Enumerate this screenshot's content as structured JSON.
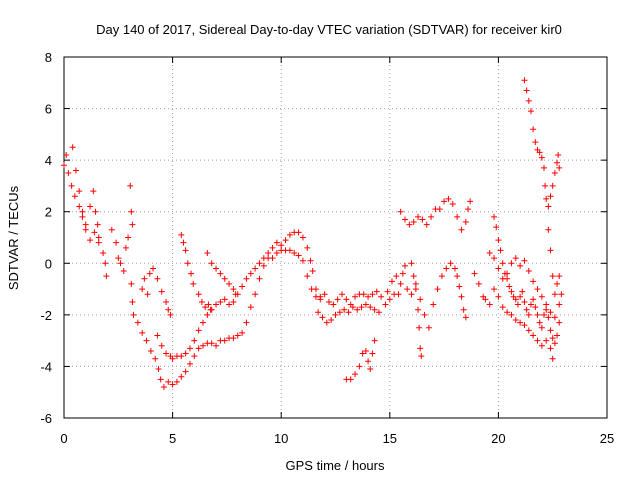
{
  "chart_data": {
    "type": "scatter",
    "title": "Day 140 of 2017, Sidereal Day-to-day VTEC variation (SDTVAR) for receiver kir0",
    "xlabel": "GPS time / hours",
    "ylabel": "SDTVAR / TECUs",
    "xlim": [
      0,
      25
    ],
    "ylim": [
      -6,
      8
    ],
    "xticks": [
      "0",
      "5",
      "10",
      "15",
      "20",
      "25"
    ],
    "yticks": [
      "-6",
      "-4",
      "-2",
      "0",
      "2",
      "4",
      "6",
      "8"
    ],
    "grid": true,
    "marker": "+",
    "series_color": "#ff0000",
    "tracks": [
      [
        [
          0.0,
          3.8
        ],
        [
          0.1,
          4.2
        ],
        [
          0.2,
          3.5
        ],
        [
          0.35,
          3.0
        ],
        [
          0.5,
          2.6
        ],
        [
          0.7,
          2.2
        ],
        [
          0.85,
          1.8
        ],
        [
          1.0,
          1.3
        ],
        [
          1.2,
          0.9
        ],
        [
          1.4,
          1.2
        ],
        [
          1.6,
          0.8
        ],
        [
          1.8,
          0.4
        ],
        [
          1.9,
          0.0
        ],
        [
          1.95,
          -0.5
        ]
      ],
      [
        [
          0.4,
          4.5
        ],
        [
          0.55,
          3.6
        ],
        [
          0.7,
          2.8
        ],
        [
          0.85,
          2.0
        ],
        [
          1.0,
          1.5
        ],
        [
          1.2,
          2.2
        ],
        [
          1.35,
          2.8
        ],
        [
          1.45,
          2.0
        ],
        [
          1.55,
          1.5
        ],
        [
          1.6,
          1.0
        ]
      ],
      [
        [
          2.2,
          1.3
        ],
        [
          2.4,
          0.8
        ],
        [
          2.5,
          0.2
        ],
        [
          2.6,
          0.0
        ],
        [
          2.75,
          -0.3
        ],
        [
          2.85,
          0.6
        ],
        [
          2.95,
          1.0
        ]
      ],
      [
        [
          3.05,
          3.0
        ],
        [
          3.1,
          2.0
        ],
        [
          3.15,
          1.5
        ]
      ],
      [
        [
          3.1,
          -0.8
        ],
        [
          3.15,
          -1.5
        ],
        [
          3.2,
          -2.0
        ],
        [
          3.4,
          -2.3
        ],
        [
          3.6,
          -2.7
        ],
        [
          3.8,
          -3.0
        ],
        [
          4.0,
          -3.4
        ],
        [
          4.2,
          -3.7
        ],
        [
          4.35,
          -4.1
        ],
        [
          4.45,
          -4.5
        ],
        [
          4.6,
          -4.8
        ],
        [
          4.8,
          -4.6
        ],
        [
          5.0,
          -4.7
        ],
        [
          5.2,
          -4.6
        ],
        [
          5.4,
          -4.4
        ],
        [
          5.6,
          -4.2
        ],
        [
          5.8,
          -3.9
        ],
        [
          6.0,
          -3.6
        ],
        [
          6.2,
          -3.3
        ],
        [
          6.4,
          -3.2
        ],
        [
          6.6,
          -3.1
        ],
        [
          6.8,
          -3.1
        ],
        [
          7.0,
          -3.2
        ],
        [
          7.2,
          -3.0
        ],
        [
          7.4,
          -3.0
        ],
        [
          7.6,
          -2.9
        ],
        [
          7.8,
          -2.9
        ],
        [
          8.0,
          -2.8
        ],
        [
          8.2,
          -2.7
        ],
        [
          8.4,
          -2.3
        ],
        [
          8.6,
          -1.7
        ],
        [
          8.8,
          -1.2
        ],
        [
          9.0,
          -0.6
        ],
        [
          9.2,
          -0.1
        ],
        [
          9.4,
          0.2
        ],
        [
          9.6,
          0.2
        ],
        [
          9.8,
          0.4
        ],
        [
          10.0,
          0.5
        ],
        [
          10.2,
          0.5
        ],
        [
          10.4,
          0.5
        ],
        [
          10.6,
          0.4
        ],
        [
          10.8,
          0.3
        ],
        [
          11.0,
          0.1
        ],
        [
          11.2,
          -0.5
        ],
        [
          11.4,
          -1.0
        ],
        [
          11.6,
          -1.3
        ],
        [
          11.8,
          -1.4
        ]
      ],
      [
        [
          3.6,
          -1.0
        ],
        [
          3.7,
          -0.6
        ],
        [
          3.85,
          -1.2
        ],
        [
          3.95,
          -0.4
        ],
        [
          4.1,
          -0.2
        ],
        [
          4.3,
          -0.6
        ],
        [
          4.5,
          -1.1
        ],
        [
          4.7,
          -1.5
        ],
        [
          4.8,
          -1.8
        ],
        [
          4.9,
          -2.0
        ]
      ],
      [
        [
          4.3,
          -2.8
        ],
        [
          4.5,
          -3.2
        ],
        [
          4.7,
          -3.5
        ],
        [
          4.9,
          -3.6
        ],
        [
          5.0,
          -3.7
        ],
        [
          5.2,
          -3.6
        ],
        [
          5.4,
          -3.6
        ],
        [
          5.6,
          -3.5
        ],
        [
          5.8,
          -3.3
        ],
        [
          6.0,
          -3.0
        ],
        [
          6.2,
          -2.6
        ],
        [
          6.4,
          -2.3
        ],
        [
          6.6,
          -2.0
        ],
        [
          6.8,
          -1.8
        ],
        [
          7.0,
          -1.6
        ],
        [
          7.2,
          -1.5
        ],
        [
          7.4,
          -1.4
        ],
        [
          7.6,
          -1.6
        ],
        [
          7.8,
          -1.5
        ],
        [
          8.0,
          -1.2
        ],
        [
          8.2,
          -0.9
        ],
        [
          8.4,
          -0.6
        ],
        [
          8.6,
          -0.4
        ],
        [
          8.8,
          -0.2
        ],
        [
          9.0,
          0.0
        ],
        [
          9.2,
          0.2
        ],
        [
          9.4,
          0.4
        ],
        [
          9.6,
          0.6
        ],
        [
          9.8,
          0.8
        ],
        [
          10.0,
          0.7
        ],
        [
          10.2,
          0.9
        ],
        [
          10.4,
          1.1
        ],
        [
          10.6,
          1.2
        ],
        [
          10.8,
          1.2
        ],
        [
          11.0,
          1.0
        ],
        [
          11.2,
          0.6
        ],
        [
          11.35,
          0.1
        ],
        [
          11.45,
          -0.3
        ]
      ],
      [
        [
          5.4,
          1.1
        ],
        [
          5.5,
          0.8
        ],
        [
          5.6,
          0.5
        ],
        [
          5.7,
          0.0
        ],
        [
          5.85,
          -0.4
        ],
        [
          5.95,
          -0.8
        ]
      ],
      [
        [
          6.2,
          -1.2
        ],
        [
          6.35,
          -1.5
        ],
        [
          6.5,
          -1.7
        ],
        [
          6.65,
          -1.6
        ],
        [
          6.75,
          -1.8
        ]
      ],
      [
        [
          6.6,
          0.4
        ],
        [
          6.8,
          0.0
        ],
        [
          7.0,
          -0.2
        ],
        [
          7.2,
          -0.4
        ],
        [
          7.4,
          -0.6
        ],
        [
          7.6,
          -0.8
        ],
        [
          7.8,
          -1.0
        ],
        [
          7.9,
          -1.2
        ]
      ],
      [
        [
          11.6,
          -1.0
        ],
        [
          11.8,
          -1.3
        ],
        [
          12.0,
          -1.2
        ],
        [
          12.2,
          -1.5
        ],
        [
          12.4,
          -1.6
        ],
        [
          12.6,
          -1.4
        ],
        [
          12.8,
          -1.2
        ],
        [
          13.0,
          -1.4
        ],
        [
          13.2,
          -1.6
        ],
        [
          13.4,
          -1.3
        ],
        [
          13.6,
          -1.2
        ],
        [
          13.8,
          -1.2
        ],
        [
          14.0,
          -1.3
        ],
        [
          14.2,
          -1.2
        ],
        [
          14.4,
          -1.1
        ],
        [
          14.6,
          -1.3
        ],
        [
          14.8,
          -1.6
        ],
        [
          15.0,
          -1.4
        ],
        [
          15.2,
          -1.2
        ],
        [
          15.4,
          -1.2
        ]
      ],
      [
        [
          11.7,
          -1.9
        ],
        [
          11.9,
          -2.1
        ],
        [
          12.1,
          -2.3
        ],
        [
          12.3,
          -2.2
        ],
        [
          12.5,
          -2.0
        ],
        [
          12.7,
          -1.9
        ],
        [
          12.9,
          -1.8
        ],
        [
          13.1,
          -1.9
        ],
        [
          13.3,
          -1.7
        ],
        [
          13.5,
          -1.8
        ],
        [
          13.7,
          -1.7
        ],
        [
          13.9,
          -1.6
        ],
        [
          14.1,
          -1.7
        ],
        [
          14.3,
          -1.8
        ],
        [
          14.5,
          -1.9
        ]
      ],
      [
        [
          13.0,
          -4.5
        ],
        [
          13.2,
          -4.5
        ],
        [
          13.4,
          -4.3
        ],
        [
          13.6,
          -4.0
        ],
        [
          13.75,
          -3.5
        ],
        [
          13.9,
          -3.4
        ],
        [
          14.0,
          -3.8
        ],
        [
          14.1,
          -4.1
        ],
        [
          14.2,
          -3.5
        ],
        [
          14.3,
          -3.0
        ]
      ],
      [
        [
          14.9,
          -1.1
        ],
        [
          15.1,
          -0.7
        ],
        [
          15.3,
          -0.5
        ],
        [
          15.5,
          -0.8
        ],
        [
          15.6,
          -0.4
        ],
        [
          15.7,
          -0.1
        ]
      ],
      [
        [
          15.5,
          2.0
        ],
        [
          15.7,
          1.7
        ],
        [
          15.9,
          1.5
        ],
        [
          16.1,
          1.6
        ],
        [
          16.3,
          1.8
        ],
        [
          16.5,
          1.7
        ],
        [
          16.7,
          1.5
        ],
        [
          16.9,
          1.8
        ],
        [
          17.1,
          2.1
        ],
        [
          17.3,
          2.1
        ],
        [
          17.5,
          2.4
        ],
        [
          17.7,
          2.5
        ],
        [
          17.9,
          2.3
        ],
        [
          18.1,
          1.8
        ],
        [
          18.3,
          1.3
        ],
        [
          18.5,
          1.6
        ],
        [
          18.6,
          2.1
        ],
        [
          18.7,
          2.4
        ]
      ],
      [
        [
          15.8,
          -1.0
        ],
        [
          16.0,
          -1.2
        ],
        [
          16.2,
          -0.8
        ],
        [
          16.4,
          -1.4
        ],
        [
          16.6,
          -2.0
        ],
        [
          16.8,
          -2.5
        ],
        [
          17.0,
          -1.6
        ],
        [
          17.2,
          -1.0
        ],
        [
          17.4,
          -0.5
        ],
        [
          17.6,
          -0.2
        ],
        [
          17.8,
          0.0
        ],
        [
          18.0,
          -0.2
        ],
        [
          18.1,
          -0.5
        ],
        [
          18.2,
          -0.9
        ],
        [
          18.3,
          -1.3
        ],
        [
          18.4,
          -1.8
        ],
        [
          18.5,
          -2.1
        ]
      ],
      [
        [
          16.0,
          0.0
        ],
        [
          16.1,
          -0.5
        ],
        [
          16.2,
          -1.0
        ],
        [
          16.3,
          -1.8
        ],
        [
          16.35,
          -2.5
        ],
        [
          16.4,
          -3.3
        ],
        [
          16.45,
          -3.6
        ]
      ],
      [
        [
          18.9,
          -0.4
        ],
        [
          19.1,
          -0.8
        ],
        [
          19.3,
          -1.3
        ],
        [
          19.4,
          -1.4
        ],
        [
          19.6,
          -1.6
        ]
      ],
      [
        [
          19.8,
          1.8
        ],
        [
          19.9,
          1.4
        ],
        [
          20.0,
          0.9
        ],
        [
          20.1,
          0.5
        ],
        [
          20.2,
          0.0
        ],
        [
          20.3,
          -0.4
        ],
        [
          20.4,
          -0.6
        ],
        [
          20.5,
          -0.9
        ],
        [
          20.6,
          -1.1
        ],
        [
          20.7,
          -1.3
        ],
        [
          20.8,
          -1.4
        ],
        [
          20.9,
          -1.6
        ],
        [
          21.0,
          -1.3
        ],
        [
          21.1,
          -1.1
        ],
        [
          21.2,
          -1.5
        ],
        [
          21.3,
          -1.8
        ],
        [
          21.4,
          -2.0
        ],
        [
          21.5,
          -1.6
        ],
        [
          21.6,
          -1.4
        ],
        [
          21.7,
          -1.7
        ],
        [
          21.8,
          -2.0
        ],
        [
          21.9,
          -2.3
        ],
        [
          22.0,
          -2.5
        ],
        [
          22.1,
          -2.0
        ],
        [
          22.2,
          -1.8
        ],
        [
          22.3,
          -2.1
        ],
        [
          22.4,
          -2.6
        ],
        [
          22.5,
          -2.9
        ],
        [
          22.6,
          -3.1
        ],
        [
          22.7,
          -2.8
        ],
        [
          22.8,
          -2.3
        ]
      ],
      [
        [
          19.6,
          0.4
        ],
        [
          19.8,
          0.2
        ],
        [
          20.0,
          -0.2
        ],
        [
          20.2,
          -0.6
        ],
        [
          20.4,
          -0.4
        ],
        [
          20.6,
          0.0
        ],
        [
          20.8,
          0.2
        ],
        [
          21.0,
          -0.1
        ],
        [
          21.2,
          0.1
        ],
        [
          21.4,
          -0.3
        ],
        [
          21.6,
          -0.7
        ],
        [
          21.8,
          -1.0
        ],
        [
          22.0,
          -1.3
        ],
        [
          22.2,
          -1.6
        ],
        [
          22.4,
          -1.9
        ],
        [
          22.6,
          -2.1
        ],
        [
          22.8,
          -1.6
        ],
        [
          22.9,
          -1.2
        ]
      ],
      [
        [
          19.8,
          -1.0
        ],
        [
          20.0,
          -1.3
        ],
        [
          20.2,
          -1.7
        ],
        [
          20.4,
          -1.9
        ],
        [
          20.6,
          -2.0
        ],
        [
          20.8,
          -2.2
        ],
        [
          21.0,
          -2.3
        ],
        [
          21.2,
          -2.4
        ],
        [
          21.4,
          -2.6
        ],
        [
          21.6,
          -2.8
        ],
        [
          21.8,
          -3.0
        ],
        [
          22.0,
          -3.2
        ],
        [
          22.2,
          -3.0
        ],
        [
          22.4,
          -3.3
        ],
        [
          22.5,
          -3.7
        ]
      ],
      [
        [
          21.2,
          7.1
        ],
        [
          21.3,
          6.7
        ],
        [
          21.4,
          6.3
        ],
        [
          21.5,
          5.9
        ],
        [
          21.6,
          5.2
        ],
        [
          21.7,
          4.7
        ],
        [
          21.8,
          4.4
        ],
        [
          21.9,
          4.3
        ],
        [
          22.0,
          4.1
        ],
        [
          22.1,
          3.7
        ],
        [
          22.15,
          3.0
        ],
        [
          22.2,
          2.5
        ],
        [
          22.3,
          2.2
        ],
        [
          22.4,
          2.6
        ],
        [
          22.5,
          3.0
        ],
        [
          22.6,
          3.5
        ],
        [
          22.7,
          3.9
        ],
        [
          22.75,
          4.2
        ],
        [
          22.8,
          3.7
        ]
      ],
      [
        [
          22.3,
          1.3
        ],
        [
          22.4,
          0.5
        ],
        [
          22.5,
          -0.5
        ],
        [
          22.6,
          -1.2
        ],
        [
          22.7,
          -0.8
        ],
        [
          22.8,
          -0.5
        ]
      ]
    ]
  }
}
